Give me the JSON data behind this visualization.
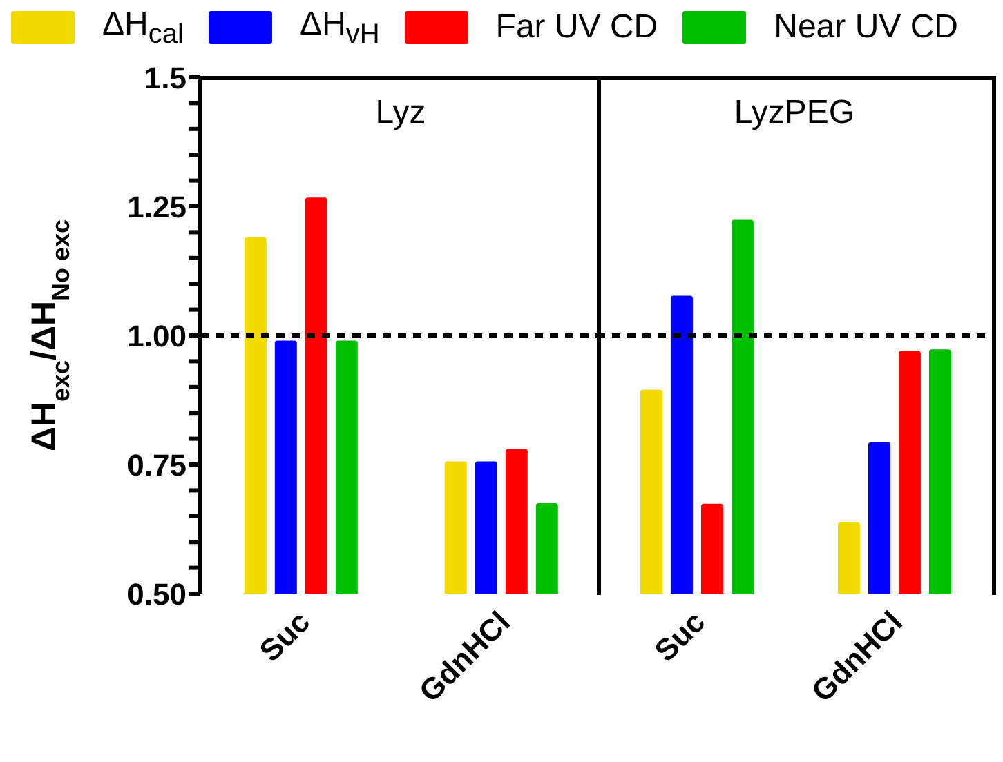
{
  "chart_data": [
    {
      "type": "bar",
      "title": "Lyz",
      "ylabel": "ΔH$_{exc}$/ΔH$_{No exc}$",
      "categories": [
        "Suc",
        "GdnHCl"
      ],
      "series": [
        {
          "name": "ΔH$_{cal}$",
          "color": "#f2da00",
          "values": [
            1.19,
            0.756
          ]
        },
        {
          "name": "ΔH$_{vH}$",
          "color": "#0000ff",
          "values": [
            0.99,
            0.756
          ]
        },
        {
          "name": "Far UV CD",
          "color": "#ff0000",
          "values": [
            1.267,
            0.78
          ]
        },
        {
          "name": "Near UV CD",
          "color": "#00bf00",
          "values": [
            0.99,
            0.675
          ]
        }
      ],
      "ylim": [
        0.5,
        1.5
      ],
      "yticks": [
        {
          "value": 0.5,
          "label": "0.50"
        },
        {
          "value": 0.55,
          "label": null
        },
        {
          "value": 0.6,
          "label": null
        },
        {
          "value": 0.65,
          "label": null
        },
        {
          "value": 0.7,
          "label": null
        },
        0.75,
        {
          "value": 0.8,
          "label": null
        },
        {
          "value": 0.85,
          "label": null
        },
        {
          "value": 0.9,
          "label": null
        },
        {
          "value": 0.95,
          "label": null
        },
        {
          "value": 1,
          "label": "1.00"
        },
        {
          "value": 1.05,
          "label": null
        },
        {
          "value": 1.1,
          "label": null
        },
        {
          "value": 1.15,
          "label": null
        },
        {
          "value": 1.2,
          "label": null
        },
        1.25,
        {
          "value": 1.3,
          "label": null
        },
        {
          "value": 1.35,
          "label": null
        },
        {
          "value": 1.4,
          "label": null
        },
        {
          "value": 1.45,
          "label": null
        },
        1.5
      ],
      "ref_lines": [
        {
          "axis": "y",
          "value": 1,
          "color": "#000000",
          "line_style": "dashed"
        }
      ],
      "legend": "top",
      "grid": false
    },
    {
      "type": "bar",
      "title": "LyzPEG",
      "categories": [
        "Suc",
        "GdnHCl"
      ],
      "series": [
        {
          "color": "#f2da00",
          "values": [
            0.895,
            0.638
          ]
        },
        {
          "color": "#0000ff",
          "values": [
            1.077,
            0.793
          ]
        },
        {
          "color": "#ff0000",
          "values": [
            0.674,
            0.97
          ]
        },
        {
          "color": "#00bf00",
          "values": [
            1.224,
            0.973
          ]
        }
      ],
      "ylim": [
        0.5,
        1.5
      ],
      "tick_labels": "x",
      "ref_lines": [
        {
          "axis": "y",
          "value": 1,
          "color": "#000000",
          "line_style": "dashed"
        }
      ],
      "grid": false
    }
  ]
}
